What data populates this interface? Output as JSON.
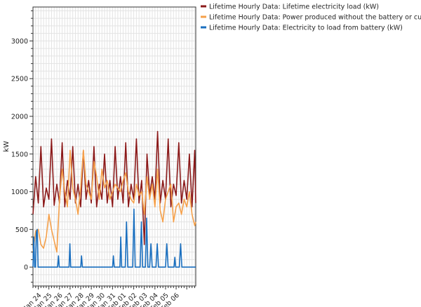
{
  "chart_data": {
    "type": "line",
    "title": "",
    "xlabel": "",
    "ylabel": "kW",
    "ylim": [
      -250,
      3450
    ],
    "yticks": [
      0,
      500,
      1000,
      1500,
      2000,
      2500,
      3000
    ],
    "xlim": [
      0,
      15.35
    ],
    "xticks": [
      {
        "x": 0.5,
        "label": "Jan 24"
      },
      {
        "x": 1.5,
        "label": "Jan 25"
      },
      {
        "x": 2.5,
        "label": "Jan 26"
      },
      {
        "x": 3.5,
        "label": "Jan 27"
      },
      {
        "x": 4.5,
        "label": "Jan 28"
      },
      {
        "x": 5.5,
        "label": "Jan 29"
      },
      {
        "x": 6.5,
        "label": "Jan 30"
      },
      {
        "x": 7.5,
        "label": "Jan 31"
      },
      {
        "x": 8.5,
        "label": "Feb 01"
      },
      {
        "x": 9.5,
        "label": "Feb 02"
      },
      {
        "x": 10.5,
        "label": "Feb 03"
      },
      {
        "x": 11.5,
        "label": "Feb 04"
      },
      {
        "x": 12.5,
        "label": "Feb 05"
      },
      {
        "x": 13.5,
        "label": "Feb 06"
      }
    ],
    "grid": true,
    "legend_position": "top-right-outside",
    "series": [
      {
        "name": "Lifetime Hourly Data: Lifetime electricity load (kW)",
        "color": "#8b1a1a",
        "x": [
          0,
          0.25,
          0.5,
          0.75,
          1,
          1.25,
          1.5,
          1.75,
          2,
          2.25,
          2.5,
          2.75,
          3,
          3.25,
          3.5,
          3.75,
          4,
          4.25,
          4.5,
          4.75,
          5,
          5.25,
          5.5,
          5.75,
          6,
          6.25,
          6.5,
          6.75,
          7,
          7.25,
          7.5,
          7.75,
          8,
          8.25,
          8.5,
          8.75,
          9,
          9.25,
          9.5,
          9.75,
          10,
          10.25,
          10.5,
          10.75,
          11,
          11.25,
          11.5,
          11.75,
          12,
          12.25,
          12.5,
          12.75,
          13,
          13.25,
          13.5,
          13.75,
          14,
          14.25,
          14.5,
          14.75,
          15,
          15.25,
          15.35
        ],
        "y": [
          700,
          1200,
          850,
          1600,
          800,
          1050,
          900,
          1700,
          820,
          1100,
          850,
          1650,
          800,
          1150,
          900,
          1600,
          850,
          1100,
          800,
          1550,
          900,
          1150,
          850,
          1600,
          800,
          1100,
          900,
          1500,
          850,
          1150,
          800,
          1600,
          900,
          1200,
          850,
          1650,
          800,
          1100,
          900,
          1700,
          850,
          1150,
          300,
          1500,
          950,
          1200,
          900,
          1800,
          850,
          1150,
          900,
          1700,
          800,
          1100,
          950,
          1650,
          850,
          1150,
          900,
          1500,
          800,
          1550,
          850
        ]
      },
      {
        "name": "Lifetime Hourly Data: Power produced without the battery or curtailment (kW)",
        "color": "#f5a04a",
        "x": [
          0,
          0.25,
          0.5,
          0.75,
          1,
          1.25,
          1.5,
          1.75,
          2,
          2.25,
          2.5,
          2.75,
          3,
          3.25,
          3.5,
          3.75,
          4,
          4.25,
          4.5,
          4.75,
          5,
          5.25,
          5.5,
          5.75,
          6,
          6.25,
          6.5,
          6.75,
          7,
          7.25,
          7.5,
          7.75,
          8,
          8.25,
          8.5,
          8.75,
          9,
          9.25,
          9.5,
          9.75,
          10,
          10.25,
          10.5,
          10.75,
          11,
          11.25,
          11.5,
          11.75,
          12,
          12.25,
          12.5,
          12.75,
          13,
          13.25,
          13.5,
          13.75,
          14,
          14.25,
          14.5,
          14.75,
          15,
          15.25,
          15.35
        ],
        "y": [
          200,
          480,
          500,
          300,
          250,
          400,
          700,
          500,
          350,
          200,
          900,
          1300,
          1000,
          800,
          1550,
          1050,
          900,
          700,
          1050,
          1550,
          1100,
          1000,
          900,
          1400,
          1200,
          900,
          1300,
          1050,
          1150,
          900,
          1000,
          1100,
          1050,
          1000,
          1150,
          1250,
          1000,
          900,
          850,
          1100,
          950,
          1000,
          700,
          1200,
          900,
          1100,
          800,
          1300,
          750,
          600,
          900,
          1000,
          1100,
          600,
          800,
          850,
          700,
          900,
          800,
          1000,
          700,
          550,
          600
        ]
      },
      {
        "name": "Lifetime Hourly Data: Electricity to load from battery (kW)",
        "color": "#1a6fbf",
        "x": [
          0,
          0.08,
          0.16,
          0.24,
          0.32,
          0.4,
          0.48,
          0.56,
          0.64,
          1.0,
          2.0,
          2.32,
          2.4,
          2.48,
          3.0,
          3.4,
          3.48,
          3.56,
          4.0,
          4.5,
          4.58,
          4.66,
          5.0,
          5.5,
          6.0,
          6.5,
          7.0,
          7.5,
          7.58,
          7.66,
          7.74,
          8.0,
          8.2,
          8.28,
          8.36,
          8.7,
          8.82,
          8.94,
          9.1,
          9.4,
          9.52,
          9.64,
          9.8,
          10.0,
          10.1,
          10.22,
          10.34,
          10.6,
          10.72,
          10.84,
          11.0,
          11.12,
          11.24,
          11.6,
          11.72,
          11.84,
          12.0,
          12.5,
          12.62,
          12.74,
          13.0,
          13.3,
          13.38,
          13.46,
          13.8,
          13.92,
          14.04,
          14.3,
          15.0,
          15.35
        ],
        "y": [
          0,
          400,
          0,
          0,
          460,
          500,
          0,
          0,
          0,
          0,
          0,
          0,
          150,
          0,
          0,
          0,
          310,
          0,
          0,
          0,
          150,
          0,
          0,
          0,
          0,
          0,
          0,
          0,
          150,
          0,
          0,
          0,
          0,
          400,
          0,
          0,
          600,
          0,
          0,
          0,
          770,
          0,
          0,
          0,
          0,
          600,
          0,
          0,
          650,
          0,
          0,
          310,
          0,
          0,
          310,
          0,
          0,
          0,
          310,
          0,
          0,
          0,
          130,
          0,
          0,
          310,
          0,
          0,
          0,
          0
        ]
      }
    ]
  }
}
